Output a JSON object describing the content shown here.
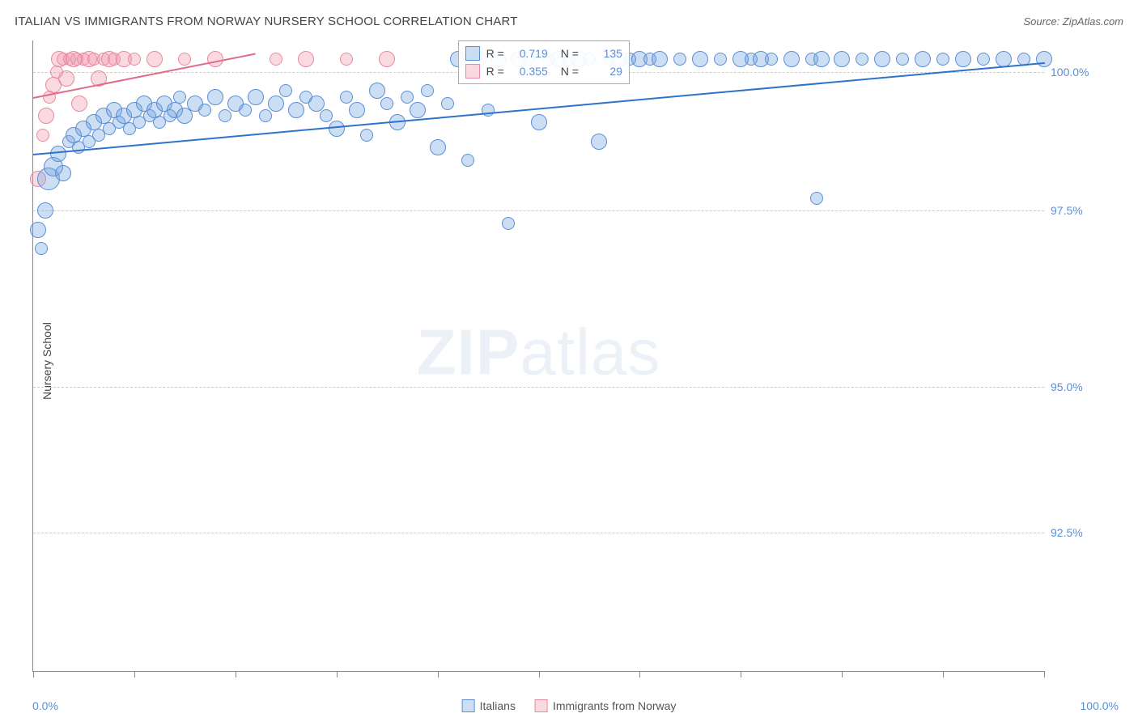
{
  "title": "ITALIAN VS IMMIGRANTS FROM NORWAY NURSERY SCHOOL CORRELATION CHART",
  "source": "Source: ZipAtlas.com",
  "watermark_bold": "ZIP",
  "watermark_light": "atlas",
  "y_axis_title": "Nursery School",
  "x_axis": {
    "min_label": "0.0%",
    "max_label": "100.0%",
    "tick_positions_pct": [
      0,
      10,
      20,
      30,
      40,
      50,
      60,
      70,
      80,
      90,
      100
    ]
  },
  "y_axis": {
    "ticks": [
      {
        "label": "100.0%",
        "pos_pct": 5
      },
      {
        "label": "97.5%",
        "pos_pct": 27
      },
      {
        "label": "95.0%",
        "pos_pct": 55
      },
      {
        "label": "92.5%",
        "pos_pct": 78
      }
    ]
  },
  "grid_color": "#cccccc",
  "axis_label_color": "#5b8fd6",
  "series": {
    "italians": {
      "label": "Italians",
      "fill": "rgba(110, 160, 220, 0.35)",
      "stroke": "#5b8fd6",
      "r_value": "0.719",
      "n_value": "135",
      "trend": {
        "x1_pct": 0,
        "y1_pct": 18,
        "x2_pct": 100,
        "y2_pct": 3.5,
        "color": "#2f72c9",
        "width": 2
      },
      "points": [
        {
          "x": 0.5,
          "y": 30,
          "r": 10
        },
        {
          "x": 0.8,
          "y": 33,
          "r": 8
        },
        {
          "x": 1.2,
          "y": 27,
          "r": 10
        },
        {
          "x": 1.5,
          "y": 22,
          "r": 14
        },
        {
          "x": 2.0,
          "y": 20,
          "r": 12
        },
        {
          "x": 2.5,
          "y": 18,
          "r": 10
        },
        {
          "x": 3.0,
          "y": 21,
          "r": 10
        },
        {
          "x": 3.5,
          "y": 16,
          "r": 8
        },
        {
          "x": 4.0,
          "y": 15,
          "r": 10
        },
        {
          "x": 4.5,
          "y": 17,
          "r": 8
        },
        {
          "x": 5.0,
          "y": 14,
          "r": 10
        },
        {
          "x": 5.5,
          "y": 16,
          "r": 8
        },
        {
          "x": 6.0,
          "y": 13,
          "r": 10
        },
        {
          "x": 6.5,
          "y": 15,
          "r": 8
        },
        {
          "x": 7.0,
          "y": 12,
          "r": 10
        },
        {
          "x": 7.5,
          "y": 14,
          "r": 8
        },
        {
          "x": 8.0,
          "y": 11,
          "r": 10
        },
        {
          "x": 8.5,
          "y": 13,
          "r": 8
        },
        {
          "x": 9.0,
          "y": 12,
          "r": 10
        },
        {
          "x": 9.5,
          "y": 14,
          "r": 8
        },
        {
          "x": 10,
          "y": 11,
          "r": 10
        },
        {
          "x": 10.5,
          "y": 13,
          "r": 8
        },
        {
          "x": 11,
          "y": 10,
          "r": 10
        },
        {
          "x": 11.5,
          "y": 12,
          "r": 8
        },
        {
          "x": 12,
          "y": 11,
          "r": 10
        },
        {
          "x": 12.5,
          "y": 13,
          "r": 8
        },
        {
          "x": 13,
          "y": 10,
          "r": 10
        },
        {
          "x": 13.5,
          "y": 12,
          "r": 8
        },
        {
          "x": 14,
          "y": 11,
          "r": 10
        },
        {
          "x": 14.5,
          "y": 9,
          "r": 8
        },
        {
          "x": 15,
          "y": 12,
          "r": 10
        },
        {
          "x": 16,
          "y": 10,
          "r": 10
        },
        {
          "x": 17,
          "y": 11,
          "r": 8
        },
        {
          "x": 18,
          "y": 9,
          "r": 10
        },
        {
          "x": 19,
          "y": 12,
          "r": 8
        },
        {
          "x": 20,
          "y": 10,
          "r": 10
        },
        {
          "x": 21,
          "y": 11,
          "r": 8
        },
        {
          "x": 22,
          "y": 9,
          "r": 10
        },
        {
          "x": 23,
          "y": 12,
          "r": 8
        },
        {
          "x": 24,
          "y": 10,
          "r": 10
        },
        {
          "x": 25,
          "y": 8,
          "r": 8
        },
        {
          "x": 26,
          "y": 11,
          "r": 10
        },
        {
          "x": 27,
          "y": 9,
          "r": 8
        },
        {
          "x": 28,
          "y": 10,
          "r": 10
        },
        {
          "x": 29,
          "y": 12,
          "r": 8
        },
        {
          "x": 30,
          "y": 14,
          "r": 10
        },
        {
          "x": 31,
          "y": 9,
          "r": 8
        },
        {
          "x": 32,
          "y": 11,
          "r": 10
        },
        {
          "x": 33,
          "y": 15,
          "r": 8
        },
        {
          "x": 34,
          "y": 8,
          "r": 10
        },
        {
          "x": 35,
          "y": 10,
          "r": 8
        },
        {
          "x": 36,
          "y": 13,
          "r": 10
        },
        {
          "x": 37,
          "y": 9,
          "r": 8
        },
        {
          "x": 38,
          "y": 11,
          "r": 10
        },
        {
          "x": 39,
          "y": 8,
          "r": 8
        },
        {
          "x": 40,
          "y": 17,
          "r": 10
        },
        {
          "x": 41,
          "y": 10,
          "r": 8
        },
        {
          "x": 42,
          "y": 3,
          "r": 10
        },
        {
          "x": 43,
          "y": 19,
          "r": 8
        },
        {
          "x": 44,
          "y": 3,
          "r": 10
        },
        {
          "x": 45,
          "y": 11,
          "r": 8
        },
        {
          "x": 46,
          "y": 3,
          "r": 10
        },
        {
          "x": 47,
          "y": 29,
          "r": 8
        },
        {
          "x": 48,
          "y": 3,
          "r": 10
        },
        {
          "x": 49,
          "y": 3,
          "r": 8
        },
        {
          "x": 50,
          "y": 13,
          "r": 10
        },
        {
          "x": 51,
          "y": 3,
          "r": 8
        },
        {
          "x": 52,
          "y": 3,
          "r": 10
        },
        {
          "x": 53,
          "y": 3,
          "r": 8
        },
        {
          "x": 54,
          "y": 3,
          "r": 10
        },
        {
          "x": 55,
          "y": 3,
          "r": 8
        },
        {
          "x": 56,
          "y": 16,
          "r": 10
        },
        {
          "x": 57,
          "y": 3,
          "r": 8
        },
        {
          "x": 58,
          "y": 3,
          "r": 10
        },
        {
          "x": 59,
          "y": 3,
          "r": 8
        },
        {
          "x": 60,
          "y": 3,
          "r": 10
        },
        {
          "x": 61,
          "y": 3,
          "r": 8
        },
        {
          "x": 62,
          "y": 3,
          "r": 10
        },
        {
          "x": 64,
          "y": 3,
          "r": 8
        },
        {
          "x": 66,
          "y": 3,
          "r": 10
        },
        {
          "x": 68,
          "y": 3,
          "r": 8
        },
        {
          "x": 70,
          "y": 3,
          "r": 10
        },
        {
          "x": 71,
          "y": 3,
          "r": 8
        },
        {
          "x": 72,
          "y": 3,
          "r": 10
        },
        {
          "x": 73,
          "y": 3,
          "r": 8
        },
        {
          "x": 75,
          "y": 3,
          "r": 10
        },
        {
          "x": 77,
          "y": 3,
          "r": 8
        },
        {
          "x": 78,
          "y": 3,
          "r": 10
        },
        {
          "x": 77.5,
          "y": 25,
          "r": 8
        },
        {
          "x": 80,
          "y": 3,
          "r": 10
        },
        {
          "x": 82,
          "y": 3,
          "r": 8
        },
        {
          "x": 84,
          "y": 3,
          "r": 10
        },
        {
          "x": 86,
          "y": 3,
          "r": 8
        },
        {
          "x": 88,
          "y": 3,
          "r": 10
        },
        {
          "x": 90,
          "y": 3,
          "r": 8
        },
        {
          "x": 92,
          "y": 3,
          "r": 10
        },
        {
          "x": 94,
          "y": 3,
          "r": 8
        },
        {
          "x": 96,
          "y": 3,
          "r": 10
        },
        {
          "x": 98,
          "y": 3,
          "r": 8
        },
        {
          "x": 100,
          "y": 3,
          "r": 10
        }
      ]
    },
    "norway": {
      "label": "Immigrants from Norway",
      "fill": "rgba(240, 150, 170, 0.35)",
      "stroke": "#e98aa0",
      "r_value": "0.355",
      "n_value": "29",
      "trend": {
        "x1_pct": 0,
        "y1_pct": 9,
        "x2_pct": 22,
        "y2_pct": 2,
        "color": "#e16b88",
        "width": 2
      },
      "points": [
        {
          "x": 0.5,
          "y": 22,
          "r": 10
        },
        {
          "x": 1.0,
          "y": 15,
          "r": 8
        },
        {
          "x": 1.3,
          "y": 12,
          "r": 10
        },
        {
          "x": 1.6,
          "y": 9,
          "r": 8
        },
        {
          "x": 2.0,
          "y": 7,
          "r": 10
        },
        {
          "x": 2.3,
          "y": 5,
          "r": 8
        },
        {
          "x": 2.6,
          "y": 3,
          "r": 10
        },
        {
          "x": 3.0,
          "y": 3,
          "r": 8
        },
        {
          "x": 3.3,
          "y": 6,
          "r": 10
        },
        {
          "x": 3.6,
          "y": 3,
          "r": 8
        },
        {
          "x": 4.0,
          "y": 3,
          "r": 10
        },
        {
          "x": 4.3,
          "y": 3,
          "r": 8
        },
        {
          "x": 4.6,
          "y": 10,
          "r": 10
        },
        {
          "x": 5.0,
          "y": 3,
          "r": 8
        },
        {
          "x": 5.5,
          "y": 3,
          "r": 10
        },
        {
          "x": 6.0,
          "y": 3,
          "r": 8
        },
        {
          "x": 6.5,
          "y": 6,
          "r": 10
        },
        {
          "x": 7.0,
          "y": 3,
          "r": 8
        },
        {
          "x": 7.5,
          "y": 3,
          "r": 10
        },
        {
          "x": 8.0,
          "y": 3,
          "r": 8
        },
        {
          "x": 9.0,
          "y": 3,
          "r": 10
        },
        {
          "x": 10,
          "y": 3,
          "r": 8
        },
        {
          "x": 12,
          "y": 3,
          "r": 10
        },
        {
          "x": 15,
          "y": 3,
          "r": 8
        },
        {
          "x": 18,
          "y": 3,
          "r": 10
        },
        {
          "x": 24,
          "y": 3,
          "r": 8
        },
        {
          "x": 27,
          "y": 3,
          "r": 10
        },
        {
          "x": 31,
          "y": 3,
          "r": 8
        },
        {
          "x": 35,
          "y": 3,
          "r": 10
        }
      ]
    }
  },
  "stats_box": {
    "left_pct": 42,
    "top_pct": 0
  },
  "legend_labels": {
    "r": "R =",
    "n": "N ="
  }
}
